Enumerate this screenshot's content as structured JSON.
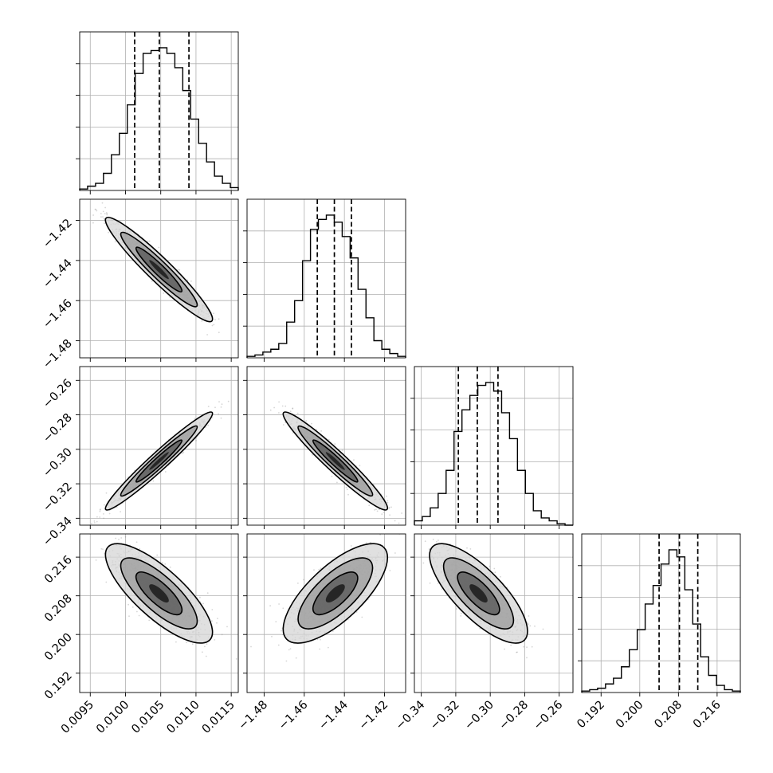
{
  "chart_data": {
    "type": "corner",
    "grid": true,
    "n_params": 4,
    "axis_ranges": [
      [
        0.00935,
        0.0116
      ],
      [
        -1.4885,
        -1.4095
      ],
      [
        -0.344,
        -0.252
      ],
      [
        0.188,
        0.2208
      ]
    ],
    "ticks": [
      [
        "0.0095",
        "0.0100",
        "0.0105",
        "0.0110",
        "0.0115"
      ],
      [
        "−1.48",
        "−1.46",
        "−1.44",
        "−1.42"
      ],
      [
        "−0.34",
        "−0.32",
        "−0.30",
        "−0.28",
        "−0.26"
      ],
      [
        "0.192",
        "0.200",
        "0.208",
        "0.216"
      ]
    ],
    "tick_values": [
      [
        0.0095,
        0.01,
        0.0105,
        0.011,
        0.0115
      ],
      [
        -1.48,
        -1.46,
        -1.44,
        -1.42
      ],
      [
        -0.34,
        -0.32,
        -0.3,
        -0.28,
        -0.26
      ],
      [
        0.192,
        0.2,
        0.208,
        0.216
      ]
    ],
    "quantile_lines": [
      [
        0.01013,
        0.01048,
        0.0109
      ],
      [
        -1.4535,
        -1.445,
        -1.4365
      ],
      [
        -0.3185,
        -0.3075,
        -0.2955
      ],
      [
        0.204,
        0.2082,
        0.212
      ]
    ],
    "histograms": [
      {
        "bins": [
          0.00935,
          0.0116
        ],
        "counts": [
          1,
          3,
          5,
          12,
          25,
          40,
          60,
          82,
          96,
          98,
          100,
          96,
          86,
          70,
          50,
          33,
          20,
          10,
          5,
          2
        ]
      },
      {
        "bins": [
          -1.4885,
          -1.4095
        ],
        "counts": [
          1,
          2,
          4,
          6,
          10,
          25,
          40,
          68,
          90,
          97,
          100,
          95,
          85,
          70,
          48,
          28,
          12,
          6,
          3,
          1
        ]
      },
      {
        "bins": [
          -0.344,
          -0.252
        ],
        "counts": [
          3,
          6,
          12,
          22,
          38,
          65,
          80,
          90,
          97,
          99,
          93,
          78,
          60,
          38,
          22,
          10,
          5,
          3,
          1,
          0
        ]
      },
      {
        "bins": [
          0.188,
          0.2208
        ],
        "counts": [
          1,
          2,
          3,
          6,
          10,
          18,
          30,
          44,
          62,
          75,
          90,
          100,
          95,
          72,
          48,
          25,
          12,
          5,
          2,
          1
        ]
      }
    ],
    "pair_correlations": {
      "1-0": -0.95,
      "2-0": 0.97,
      "2-1": -0.96,
      "3-0": -0.78,
      "3-1": 0.72,
      "3-2": -0.76
    }
  }
}
